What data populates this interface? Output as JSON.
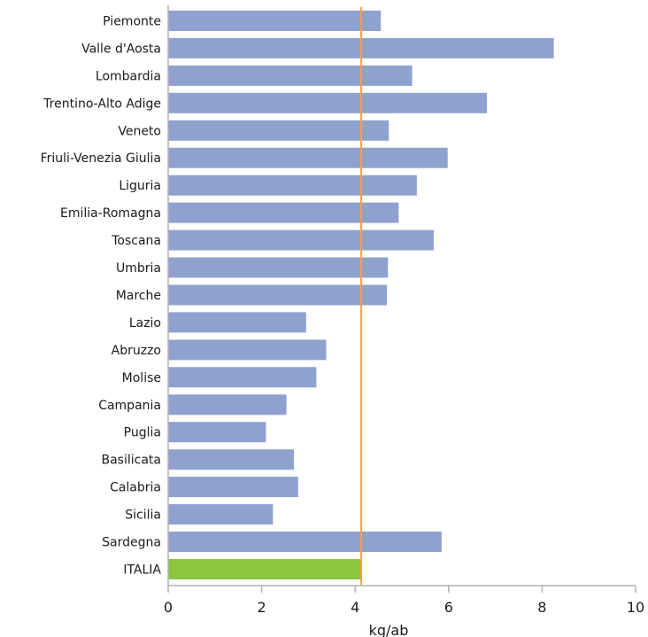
{
  "chart_data": {
    "type": "bar",
    "orientation": "horizontal",
    "xlabel": "kg/ab",
    "xlim": [
      0,
      10
    ],
    "xticks": [
      0,
      2,
      4,
      6,
      8,
      10
    ],
    "grid": false,
    "categories": [
      "Piemonte",
      "Valle d'Aosta",
      "Lombardia",
      "Trentino-Alto Adige",
      "Veneto",
      "Friuli-Venezia Giulia",
      "Liguria",
      "Emilia-Romagna",
      "Toscana",
      "Umbria",
      "Marche",
      "Lazio",
      "Abruzzo",
      "Molise",
      "Campania",
      "Puglia",
      "Basilicata",
      "Calabria",
      "Sicilia",
      "Sardegna",
      "ITALIA"
    ],
    "values": [
      4.55,
      8.25,
      5.22,
      6.82,
      4.72,
      5.98,
      5.32,
      4.93,
      5.68,
      4.7,
      4.68,
      2.95,
      3.38,
      3.17,
      2.53,
      2.09,
      2.69,
      2.78,
      2.24,
      5.85,
      4.13
    ],
    "reference_line": {
      "value": 4.13,
      "color": "#f5a623"
    },
    "colors": {
      "bar": "#8fa1cf",
      "highlight": "#8cc63f",
      "axis": "#b3b3b3"
    },
    "highlight_category": "ITALIA"
  }
}
